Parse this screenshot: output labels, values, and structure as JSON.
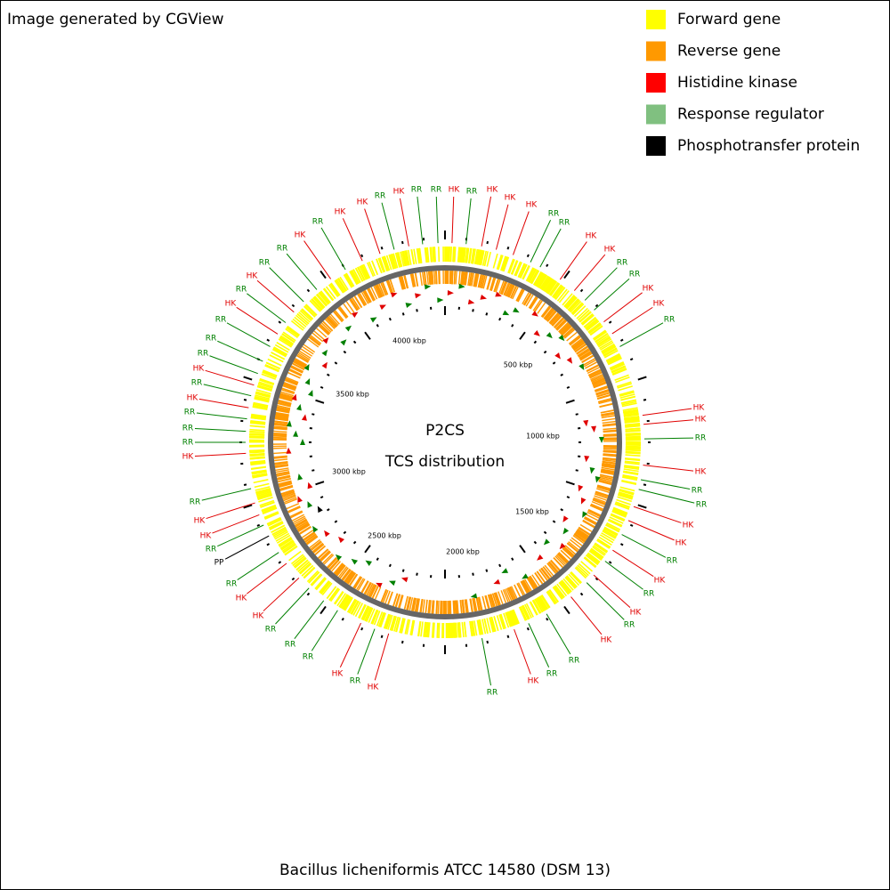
{
  "header": "Image generated by CGView",
  "legend": [
    {
      "label": "Forward gene",
      "color": "#ffff00"
    },
    {
      "label": "Reverse gene",
      "color": "#ff9900"
    },
    {
      "label": "Histidine kinase",
      "color": "#ff0000"
    },
    {
      "label": "Response regulator",
      "color": "#80c080"
    },
    {
      "label": "Phosphotransfer protein",
      "color": "#000000"
    }
  ],
  "center": {
    "line1": "P2CS",
    "line2": "TCS distribution"
  },
  "ticks": [
    "500 kbp",
    "1000 kbp",
    "1500 kbp",
    "2000 kbp",
    "2500 kbp",
    "3000 kbp",
    "3500 kbp",
    "4000 kbp"
  ],
  "labels": [
    {
      "text": "RR",
      "color": "#008000"
    },
    {
      "text": "HK",
      "color": "#e00000"
    },
    {
      "text": "RR",
      "color": "#008000"
    },
    {
      "text": "HK",
      "color": "#e00000"
    },
    {
      "text": "HK",
      "color": "#e00000"
    },
    {
      "text": "HK",
      "color": "#e00000"
    },
    {
      "text": "RR",
      "color": "#008000"
    },
    {
      "text": "RR",
      "color": "#008000"
    },
    {
      "text": "HK",
      "color": "#e00000"
    },
    {
      "text": "HK",
      "color": "#e00000"
    },
    {
      "text": "RR",
      "color": "#008000"
    },
    {
      "text": "RR",
      "color": "#008000"
    },
    {
      "text": "HK",
      "color": "#e00000"
    },
    {
      "text": "HK",
      "color": "#e00000"
    },
    {
      "text": "RR",
      "color": "#008000"
    },
    {
      "text": "HK",
      "color": "#e00000"
    },
    {
      "text": "HK",
      "color": "#e00000"
    },
    {
      "text": "RR",
      "color": "#008000"
    },
    {
      "text": "HK",
      "color": "#e00000"
    },
    {
      "text": "RR",
      "color": "#008000"
    },
    {
      "text": "RR",
      "color": "#008000"
    },
    {
      "text": "HK",
      "color": "#e00000"
    },
    {
      "text": "HK",
      "color": "#e00000"
    },
    {
      "text": "RR",
      "color": "#008000"
    },
    {
      "text": "HK",
      "color": "#e00000"
    },
    {
      "text": "RR",
      "color": "#008000"
    },
    {
      "text": "HK",
      "color": "#e00000"
    },
    {
      "text": "RR",
      "color": "#008000"
    },
    {
      "text": "HK",
      "color": "#e00000"
    },
    {
      "text": "RR",
      "color": "#008000"
    },
    {
      "text": "RR",
      "color": "#008000"
    },
    {
      "text": "HK",
      "color": "#e00000"
    },
    {
      "text": "RR",
      "color": "#008000"
    },
    {
      "text": "HK",
      "color": "#e00000"
    },
    {
      "text": "RR",
      "color": "#008000"
    },
    {
      "text": "HK",
      "color": "#e00000"
    },
    {
      "text": "RR",
      "color": "#008000"
    },
    {
      "text": "RR",
      "color": "#008000"
    },
    {
      "text": "RR",
      "color": "#008000"
    },
    {
      "text": "HK",
      "color": "#e00000"
    },
    {
      "text": "HK",
      "color": "#e00000"
    },
    {
      "text": "RR",
      "color": "#008000"
    },
    {
      "text": "PP",
      "color": "#000000"
    },
    {
      "text": "RR",
      "color": "#008000"
    },
    {
      "text": "HK",
      "color": "#e00000"
    },
    {
      "text": "HK",
      "color": "#e00000"
    },
    {
      "text": "RR",
      "color": "#008000"
    },
    {
      "text": "HK",
      "color": "#e00000"
    },
    {
      "text": "RR",
      "color": "#008000"
    },
    {
      "text": "RR",
      "color": "#008000"
    },
    {
      "text": "RR",
      "color": "#008000"
    },
    {
      "text": "HK",
      "color": "#e00000"
    },
    {
      "text": "RR",
      "color": "#008000"
    },
    {
      "text": "HK",
      "color": "#e00000"
    },
    {
      "text": "RR",
      "color": "#008000"
    },
    {
      "text": "RR",
      "color": "#008000"
    },
    {
      "text": "RR",
      "color": "#008000"
    },
    {
      "text": "HK",
      "color": "#e00000"
    },
    {
      "text": "RR",
      "color": "#008000"
    },
    {
      "text": "HK",
      "color": "#e00000"
    },
    {
      "text": "RR",
      "color": "#008000"
    },
    {
      "text": "RR",
      "color": "#008000"
    },
    {
      "text": "HK",
      "color": "#e00000"
    },
    {
      "text": "RR",
      "color": "#008000"
    },
    {
      "text": "HK",
      "color": "#e00000"
    },
    {
      "text": "HK",
      "color": "#e00000"
    },
    {
      "text": "RR",
      "color": "#008000"
    },
    {
      "text": "HK",
      "color": "#e00000"
    },
    {
      "text": "RR",
      "color": "#008000"
    }
  ],
  "footer": "Bacillus licheniformis ATCC 14580 (DSM 13)"
}
